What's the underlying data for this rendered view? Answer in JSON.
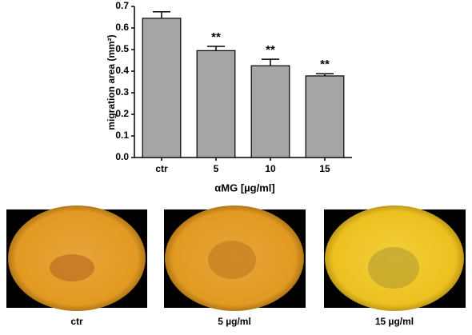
{
  "chart_data": {
    "type": "bar",
    "y_label": "migration area (mm²)",
    "x_label": "αMG [µg/ml]",
    "categories": [
      "ctr",
      "5",
      "10",
      "15"
    ],
    "values": [
      0.645,
      0.495,
      0.425,
      0.378
    ],
    "errors": [
      0.03,
      0.02,
      0.03,
      0.01
    ],
    "value_annotations": [
      null,
      "**",
      "**",
      "**"
    ],
    "color": "#a6a6a6",
    "ylim": [
      0,
      0.7
    ],
    "yticks": [
      {
        "value": 0,
        "label": "0.0"
      },
      0.1,
      0.2,
      0.3,
      0.4,
      0.5,
      0.6,
      0.7
    ],
    "grid": false
  },
  "panels": [
    {
      "caption": "ctr"
    },
    {
      "caption": "5 µg/ml"
    },
    {
      "caption": "15 µg/ml"
    }
  ]
}
